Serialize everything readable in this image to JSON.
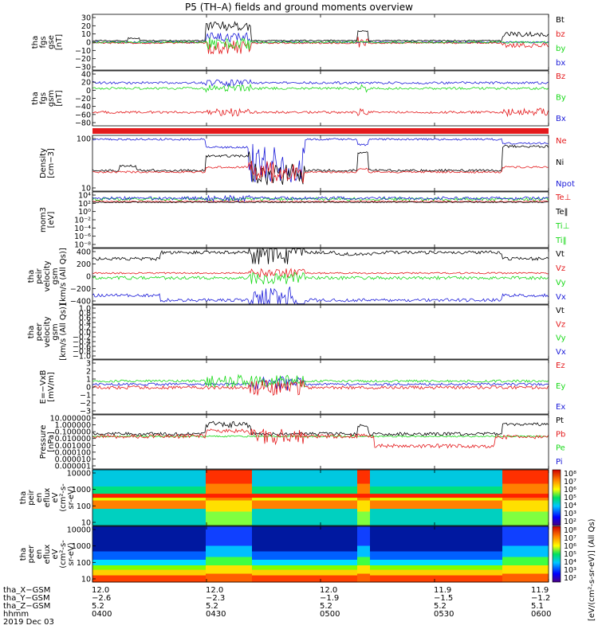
{
  "title": "P5 (TH–A) fields and ground moments overview",
  "colors": {
    "black": "#000000",
    "red": "#e41a1c",
    "green": "#19d919",
    "blue": "#1c1cd9"
  },
  "chart_data": [
    {
      "type": "line",
      "name": "fgs",
      "ylabel": [
        "tha",
        "fgs",
        "gse",
        "[nT]"
      ],
      "yticks": [
        "30",
        "20",
        "10",
        "0",
        "−10",
        "−20",
        "−30"
      ],
      "legend": [
        {
          "label": "Bt",
          "color": "#000000"
        },
        {
          "label": "bz",
          "color": "#e41a1c"
        },
        {
          "label": "by",
          "color": "#19d919"
        },
        {
          "label": "bx",
          "color": "#1c1cd9"
        }
      ]
    },
    {
      "type": "line",
      "name": "fgs-gsm",
      "ylabel": [
        "tha",
        "fgs",
        "gsm",
        "[nT]"
      ],
      "yticks": [
        "40",
        "20",
        "0",
        "−20",
        "−40",
        "−60",
        "−80"
      ],
      "legend": [
        {
          "label": "Bz",
          "color": "#e41a1c"
        },
        {
          "label": "By",
          "color": "#19d919"
        },
        {
          "label": "Bx",
          "color": "#1c1cd9"
        }
      ]
    },
    {
      "type": "line",
      "name": "density",
      "ylabel": [
        "Density",
        "[cm−3]"
      ],
      "yticks": [
        "100",
        "10"
      ],
      "legend": [
        {
          "label": "Ne",
          "color": "#e41a1c"
        },
        {
          "label": "Ni",
          "color": "#000000"
        },
        {
          "label": "Npot",
          "color": "#1c1cd9"
        }
      ]
    },
    {
      "type": "line",
      "name": "temperature",
      "ylabel": [
        "mom3",
        "[eV]"
      ],
      "yticks": [
        "10⁴",
        "10²",
        "10⁰",
        "10⁻²",
        "10⁻⁴",
        "10⁻⁶",
        "10⁻⁸"
      ],
      "legend": [
        {
          "label": "Te⊥",
          "color": "#e41a1c"
        },
        {
          "label": "Te‖",
          "color": "#000000"
        },
        {
          "label": "Ti⊥",
          "color": "#19d919"
        },
        {
          "label": "Ti‖",
          "color": "#19d919"
        }
      ]
    },
    {
      "type": "line",
      "name": "ion-velocity",
      "ylabel": [
        "tha",
        "peir",
        "velocity",
        "gsm",
        "[km/s (All Qs)]"
      ],
      "yticks": [
        "400",
        "200",
        "0",
        "−200",
        "−400"
      ],
      "legend": [
        {
          "label": "Vt",
          "color": "#000000"
        },
        {
          "label": "Vz",
          "color": "#e41a1c"
        },
        {
          "label": "Vy",
          "color": "#19d919"
        },
        {
          "label": "Vx",
          "color": "#1c1cd9"
        }
      ]
    },
    {
      "type": "line",
      "name": "electron-velocity",
      "ylabel": [
        "tha",
        "peer",
        "velocity",
        "gsm",
        "[km/s (All Qs)]"
      ],
      "yticks": [
        "1.0",
        "0.8",
        "0.6",
        "0.4",
        "0.2",
        "0.0",
        "−0.2",
        "−0.4",
        "−0.6",
        "−0.8",
        "−1.0"
      ],
      "legend": [
        {
          "label": "Vt",
          "color": "#000000"
        },
        {
          "label": "Vz",
          "color": "#e41a1c"
        },
        {
          "label": "Vy",
          "color": "#19d919"
        },
        {
          "label": "Vx",
          "color": "#1c1cd9"
        }
      ]
    },
    {
      "type": "line",
      "name": "efield",
      "ylabel": [
        "E=−VxB",
        "[mV/m]"
      ],
      "yticks": [
        "3",
        "2",
        "1",
        "0",
        "−1",
        "−2",
        "−3"
      ],
      "legend": [
        {
          "label": "Ez",
          "color": "#e41a1c"
        },
        {
          "label": "Ey",
          "color": "#19d919"
        },
        {
          "label": "Ex",
          "color": "#1c1cd9"
        }
      ]
    },
    {
      "type": "line",
      "name": "pressure",
      "ylabel": [
        "Pressure",
        "[nPa]"
      ],
      "yticks": [
        "10.000000",
        "1.000000",
        "0.100000",
        "0.010000",
        "0.001000",
        "0.000100",
        "0.000010",
        "0.000001"
      ],
      "legend": [
        {
          "label": "Pt",
          "color": "#000000"
        },
        {
          "label": "Pb",
          "color": "#e41a1c"
        },
        {
          "label": "Pe",
          "color": "#19d919"
        },
        {
          "label": "Pi",
          "color": "#1c1cd9"
        }
      ]
    },
    {
      "type": "heatmap",
      "name": "ion-spectrogram",
      "ylabel": [
        "tha",
        "peir",
        "en",
        "eflux",
        "eV",
        "(cm²-s-",
        "sr-eV)"
      ],
      "yticks": [
        "10000",
        "1000",
        "100",
        "10"
      ]
    },
    {
      "type": "heatmap",
      "name": "electron-spectrogram",
      "ylabel": [
        "tha",
        "peer",
        "en",
        "eflux",
        "eV",
        "(cm²-s-",
        "sr-eV)"
      ],
      "yticks": [
        "10000",
        "1000",
        "100",
        "10"
      ]
    }
  ],
  "colorbar": {
    "label": "[eV/(cm²-s-sr-eV)] (All Qs)",
    "ticks_top": [
      "10⁸",
      "10⁷",
      "10⁶",
      "10⁵",
      "10⁴",
      "10³",
      "10²"
    ],
    "ticks_bottom": [
      "10⁸",
      "10⁷",
      "10⁶",
      "10⁵",
      "10⁴",
      "10³",
      "10²"
    ]
  },
  "ephemeris": {
    "rows": [
      "tha_X−GSM",
      "tha_Y−GSM",
      "tha_Z−GSM",
      "hhmm"
    ],
    "footer": "2019 Dec 03",
    "columns": [
      {
        "x": "12.0",
        "y": "−2.6",
        "z": "5.2",
        "t": "0400"
      },
      {
        "x": "12.0",
        "y": "−2.3",
        "z": "5.2",
        "t": "0430"
      },
      {
        "x": "12.0",
        "y": "−1.9",
        "z": "5.2",
        "t": "0500"
      },
      {
        "x": "11.9",
        "y": "−1.5",
        "z": "5.2",
        "t": "0530"
      },
      {
        "x": "11.9",
        "y": "−1.2",
        "z": "5.1",
        "t": "0600"
      }
    ]
  }
}
